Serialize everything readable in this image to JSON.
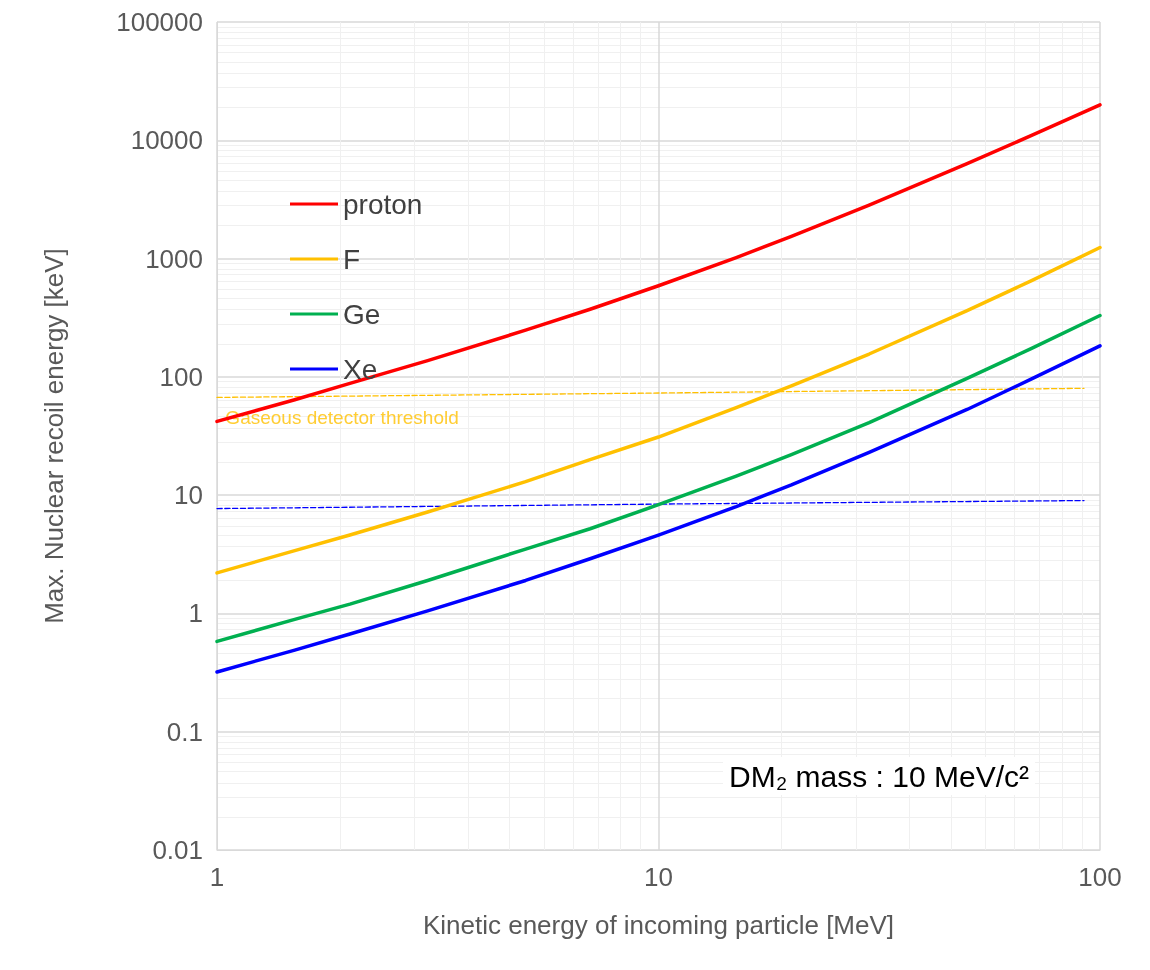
{
  "chart_data": {
    "type": "line",
    "xlabel": "Kinetic energy of incoming particle [MeV]",
    "ylabel": "Max. Nuclear recoil energy [keV]",
    "x": [
      1,
      1.5,
      2,
      3,
      5,
      7,
      10,
      15,
      20,
      30,
      50,
      70,
      100
    ],
    "series": [
      {
        "name": "proton",
        "color": "#ff0000",
        "values": [
          42,
          64,
          88,
          137,
          248,
          373,
          589,
          1020,
          1540,
          2830,
          6350,
          11000,
          19900
        ]
      },
      {
        "name": "F",
        "color": "#ffc000",
        "values": [
          2.2,
          3.4,
          4.6,
          7.2,
          13,
          20,
          31,
          55,
          84,
          156,
          363,
          650,
          1240
        ]
      },
      {
        "name": "Ge",
        "color": "#00b050",
        "values": [
          0.58,
          0.89,
          1.2,
          1.9,
          3.5,
          5.2,
          8.3,
          14.5,
          22,
          41,
          97,
          174,
          330
        ]
      },
      {
        "name": "Xe",
        "color": "#0000ff",
        "values": [
          0.32,
          0.49,
          0.67,
          1.05,
          1.9,
          2.9,
          4.6,
          8.0,
          12.2,
          23,
          53,
          96,
          183
        ]
      },
      {
        "color": "#ffc000",
        "x": [
          1,
          10,
          92
        ],
        "values": [
          67,
          73,
          80
        ],
        "line_style": "dashed"
      },
      {
        "color": "#0000ff",
        "x": [
          1,
          10,
          92
        ],
        "values": [
          7.7,
          8.4,
          9.0
        ],
        "line_style": "dashed"
      }
    ],
    "annotations": [
      {
        "text": "Gaseous detector threshold",
        "x": 1.05,
        "y": 45
      },
      "DM₂ mass : 10 MeV/c²"
    ],
    "log": "xy",
    "xlim": [
      1,
      100
    ],
    "xticks": [
      1,
      10,
      100
    ],
    "ylim": [
      0.01,
      100000
    ],
    "yticks": [
      0.01,
      0.1,
      1,
      10,
      100,
      1000,
      10000,
      100000
    ],
    "grid": true,
    "legend": "top left",
    "marker": "none",
    "line_style": "solid"
  }
}
